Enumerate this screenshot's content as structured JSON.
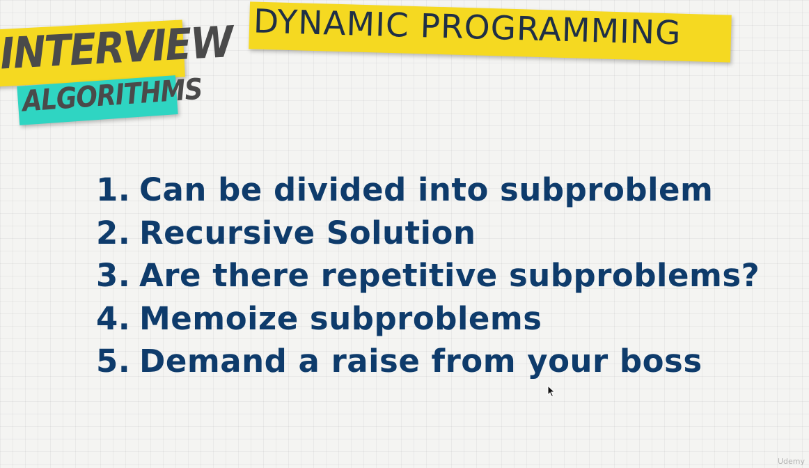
{
  "logo": {
    "line1": "INTERVIEW",
    "line2": "ALGORITHMS"
  },
  "title": "DYNAMIC PROGRAMMING",
  "steps": [
    {
      "number": "1.",
      "text": "Can be divided into subproblem"
    },
    {
      "number": "2.",
      "text": "Recursive Solution"
    },
    {
      "number": "3.",
      "text": "Are there repetitive subproblems?"
    },
    {
      "number": "4.",
      "text": "Memoize subproblems"
    },
    {
      "number": "5.",
      "text": "Demand a raise from your boss"
    }
  ],
  "watermark": "Udemy",
  "colors": {
    "background": "#f4f4f2",
    "yellow": "#f5d921",
    "teal": "#2fd5c2",
    "text_blue": "#0e3b6b",
    "title_text": "#1f2f46",
    "logo_text": "#4a4a4a"
  },
  "icons": {
    "cursor": "mouse-pointer-icon"
  }
}
